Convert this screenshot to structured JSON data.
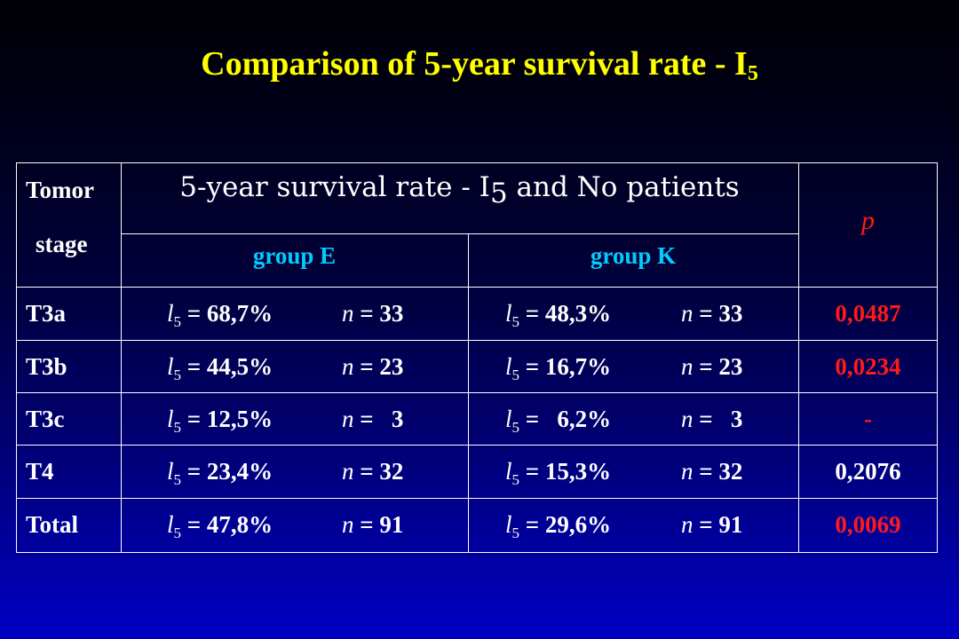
{
  "title": {
    "text": "Comparison of 5-year survival rate - I",
    "subscript": "5"
  },
  "table": {
    "header": {
      "stage_line1": "Tomor",
      "stage_line2": "stage",
      "main_text": "5-year survival rate - I",
      "main_subscript": "5",
      "main_suffix": " and No patients",
      "group_e": "group E",
      "group_k": "group K",
      "p": "p"
    },
    "symbols": {
      "l": "l",
      "l_sub": "5",
      "n": "n"
    },
    "rows": [
      {
        "stage": "T3a",
        "e_rate": "= 68,7%",
        "e_n": "= 33",
        "k_rate": "= 48,3%",
        "k_n": "= 33",
        "p": "0,0487",
        "p_color": "#ff1a1a"
      },
      {
        "stage": "T3b",
        "e_rate": "= 44,5%",
        "e_n": "= 23",
        "k_rate": "= 16,7%",
        "k_n": "= 23",
        "p": "0,0234",
        "p_color": "#ff1a1a"
      },
      {
        "stage": "T3c",
        "e_rate": "= 12,5%",
        "e_n": "=   3",
        "k_rate": "=   6,2%",
        "k_n": "=   3",
        "p": "-",
        "p_color": "#ff1a1a"
      },
      {
        "stage": "T4",
        "e_rate": "= 23,4%",
        "e_n": "= 32",
        "k_rate": "= 15,3%",
        "k_n": "= 32",
        "p": "0,2076",
        "p_color": "#ffffff"
      },
      {
        "stage": "Total",
        "e_rate": "= 47,8%",
        "e_n": "= 91",
        "k_rate": "= 29,6%",
        "k_n": "= 91",
        "p": "0,0069",
        "p_color": "#ff1a1a"
      }
    ]
  },
  "colors": {
    "title": "#ffff00",
    "group_header": "#00ccff",
    "p_header": "#ff1a1a",
    "grid": "#ffffff",
    "background_top": "#000005",
    "background_bottom": "#0000c4"
  }
}
